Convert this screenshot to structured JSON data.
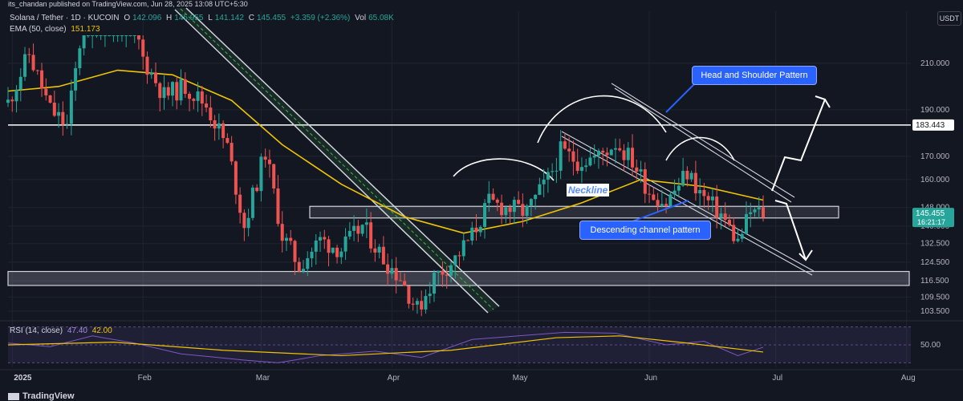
{
  "header": {
    "published": "its_chandan published on TradingView.com, Jun 28, 2025 13:08 UTC+5:30",
    "symbol": "Solana / Tether · 1D · KUCOIN",
    "ohlc": [
      {
        "label": "O",
        "value": "142.096"
      },
      {
        "label": "H",
        "value": "145.955"
      },
      {
        "label": "L",
        "value": "141.142"
      },
      {
        "label": "C",
        "value": "145.455"
      }
    ],
    "change": "+3.359 (+2.36%)",
    "volume_label": "Vol",
    "volume_value": "65.08K",
    "ema_label": "EMA (50, close)",
    "ema_value": "151.173",
    "currency": "USDT"
  },
  "rsi": {
    "label": "RSI (14, close)",
    "value": "47.40",
    "ma_value": "42.00",
    "tick_labels": [
      "50.00"
    ]
  },
  "footer": {
    "brand": "TradingView"
  },
  "annotations": {
    "head_shoulder": "Head and Shoulder Pattern",
    "descending_channel": "Descending channel pattern",
    "neckline": "Neckline"
  },
  "colors": {
    "background": "#131722",
    "up": "#26a69a",
    "down": "#ef5350",
    "ema": "#f0c400",
    "rsi": "#7e57c2",
    "callout": "#2962ff"
  },
  "chart_data": {
    "type": "candlestick",
    "title": "Solana / Tether · 1D · KUCOIN",
    "ylim": [
      100,
      222
    ],
    "y_ticks": [
      {
        "value": 210,
        "label": "210.000"
      },
      {
        "value": 190,
        "label": "190.000"
      },
      {
        "value": 170,
        "label": "170.000"
      },
      {
        "value": 160,
        "label": "160.000"
      },
      {
        "value": 148,
        "label": "148.000"
      },
      {
        "value": 140,
        "label": "140.000"
      },
      {
        "value": 132.5,
        "label": "132.500"
      },
      {
        "value": 124.5,
        "label": "124.500"
      },
      {
        "value": 116.5,
        "label": "116.500"
      },
      {
        "value": 109.5,
        "label": "109.500"
      },
      {
        "value": 103.5,
        "label": "103.500"
      }
    ],
    "price_tags": [
      {
        "value": 183.443,
        "label": "183.443",
        "style": "white"
      },
      {
        "value": 145.455,
        "label": "145.455",
        "sublabel": "16:21:17",
        "style": "green"
      }
    ],
    "x_labels": [
      {
        "date": "2025-01-01",
        "label": "2025"
      },
      {
        "date": "2025-02-01",
        "label": "Feb"
      },
      {
        "date": "2025-03-01",
        "label": "Mar"
      },
      {
        "date": "2025-04-01",
        "label": "Apr"
      },
      {
        "date": "2025-05-01",
        "label": "May"
      },
      {
        "date": "2025-06-01",
        "label": "Jun"
      },
      {
        "date": "2025-07-01",
        "label": "Jul"
      },
      {
        "date": "2025-08-01",
        "label": "Aug"
      }
    ],
    "x_range": [
      "2024-12-31",
      "2025-08-02"
    ],
    "close_series": [
      {
        "date": "2024-12-31",
        "close": 193
      },
      {
        "date": "2025-01-05",
        "close": 214
      },
      {
        "date": "2025-01-10",
        "close": 190
      },
      {
        "date": "2025-01-14",
        "close": 183
      },
      {
        "date": "2025-01-19",
        "close": 242
      },
      {
        "date": "2025-01-23",
        "close": 232
      },
      {
        "date": "2025-01-27",
        "close": 246
      },
      {
        "date": "2025-02-01",
        "close": 212
      },
      {
        "date": "2025-02-06",
        "close": 196
      },
      {
        "date": "2025-02-11",
        "close": 200
      },
      {
        "date": "2025-02-16",
        "close": 192
      },
      {
        "date": "2025-02-21",
        "close": 174
      },
      {
        "date": "2025-02-25",
        "close": 140
      },
      {
        "date": "2025-03-02",
        "close": 172
      },
      {
        "date": "2025-03-06",
        "close": 136
      },
      {
        "date": "2025-03-10",
        "close": 123
      },
      {
        "date": "2025-03-15",
        "close": 134
      },
      {
        "date": "2025-03-20",
        "close": 130
      },
      {
        "date": "2025-03-25",
        "close": 140
      },
      {
        "date": "2025-03-30",
        "close": 126
      },
      {
        "date": "2025-04-03",
        "close": 118
      },
      {
        "date": "2025-04-07",
        "close": 104
      },
      {
        "date": "2025-04-11",
        "close": 118
      },
      {
        "date": "2025-04-16",
        "close": 126
      },
      {
        "date": "2025-04-20",
        "close": 136
      },
      {
        "date": "2025-04-24",
        "close": 150
      },
      {
        "date": "2025-04-28",
        "close": 148
      },
      {
        "date": "2025-05-03",
        "close": 146
      },
      {
        "date": "2025-05-08",
        "close": 160
      },
      {
        "date": "2025-05-11",
        "close": 172
      },
      {
        "date": "2025-05-15",
        "close": 168
      },
      {
        "date": "2025-05-20",
        "close": 170
      },
      {
        "date": "2025-05-24",
        "close": 176
      },
      {
        "date": "2025-05-28",
        "close": 168
      },
      {
        "date": "2025-06-01",
        "close": 155
      },
      {
        "date": "2025-06-05",
        "close": 150
      },
      {
        "date": "2025-06-10",
        "close": 163
      },
      {
        "date": "2025-06-14",
        "close": 152
      },
      {
        "date": "2025-06-18",
        "close": 145
      },
      {
        "date": "2025-06-22",
        "close": 133
      },
      {
        "date": "2025-06-25",
        "close": 146
      },
      {
        "date": "2025-06-28",
        "close": 145.455
      }
    ],
    "ema_series": [
      {
        "date": "2024-12-31",
        "value": 198
      },
      {
        "date": "2025-01-12",
        "value": 200
      },
      {
        "date": "2025-01-26",
        "value": 207
      },
      {
        "date": "2025-02-08",
        "value": 205
      },
      {
        "date": "2025-02-22",
        "value": 194
      },
      {
        "date": "2025-03-06",
        "value": 175
      },
      {
        "date": "2025-03-20",
        "value": 158
      },
      {
        "date": "2025-04-04",
        "value": 144
      },
      {
        "date": "2025-04-18",
        "value": 137
      },
      {
        "date": "2025-05-02",
        "value": 142
      },
      {
        "date": "2025-05-16",
        "value": 150
      },
      {
        "date": "2025-05-30",
        "value": 160
      },
      {
        "date": "2025-06-14",
        "value": 157
      },
      {
        "date": "2025-06-28",
        "value": 151.173
      }
    ],
    "horizontal_lines": [
      {
        "value": 183.443
      }
    ],
    "zones": [
      {
        "low": 143.5,
        "high": 148.5,
        "label": "Neckline"
      },
      {
        "low": 114.5,
        "high": 120.5
      }
    ],
    "rsi_series": [
      {
        "date": "2024-12-31",
        "value": 52
      },
      {
        "date": "2025-01-10",
        "value": 48
      },
      {
        "date": "2025-01-20",
        "value": 60
      },
      {
        "date": "2025-01-30",
        "value": 52
      },
      {
        "date": "2025-02-10",
        "value": 40
      },
      {
        "date": "2025-02-25",
        "value": 33
      },
      {
        "date": "2025-03-05",
        "value": 30
      },
      {
        "date": "2025-03-15",
        "value": 38
      },
      {
        "date": "2025-03-28",
        "value": 43
      },
      {
        "date": "2025-04-08",
        "value": 36
      },
      {
        "date": "2025-04-20",
        "value": 56
      },
      {
        "date": "2025-05-01",
        "value": 60
      },
      {
        "date": "2025-05-12",
        "value": 64
      },
      {
        "date": "2025-05-24",
        "value": 63
      },
      {
        "date": "2025-06-05",
        "value": 50
      },
      {
        "date": "2025-06-14",
        "value": 54
      },
      {
        "date": "2025-06-22",
        "value": 38
      },
      {
        "date": "2025-06-28",
        "value": 47.4
      }
    ],
    "rsi_ma_series": [
      {
        "date": "2024-12-31",
        "value": 50
      },
      {
        "date": "2025-01-25",
        "value": 53
      },
      {
        "date": "2025-02-20",
        "value": 44
      },
      {
        "date": "2025-03-20",
        "value": 38
      },
      {
        "date": "2025-04-15",
        "value": 44
      },
      {
        "date": "2025-05-10",
        "value": 58
      },
      {
        "date": "2025-05-25",
        "value": 60
      },
      {
        "date": "2025-06-10",
        "value": 52
      },
      {
        "date": "2025-06-28",
        "value": 42
      }
    ],
    "rsi_ylim": [
      25,
      75
    ]
  }
}
